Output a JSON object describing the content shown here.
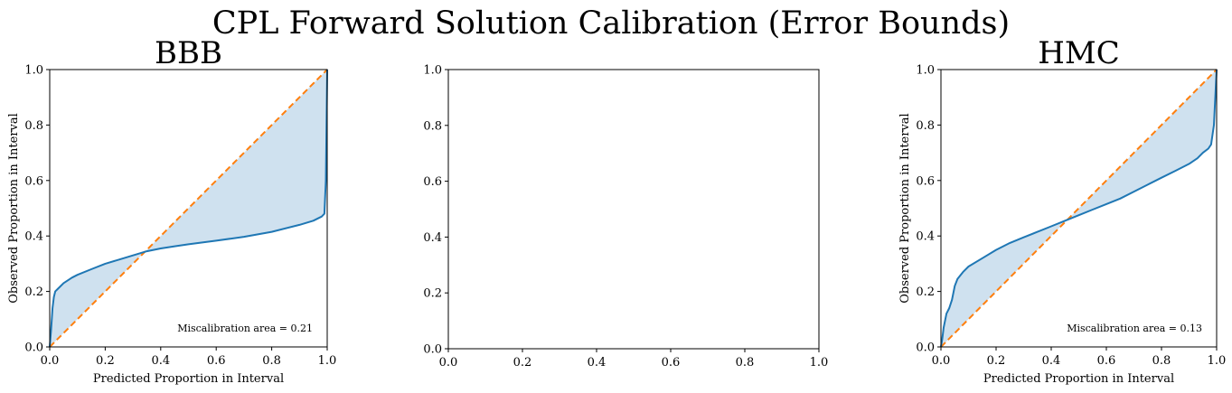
{
  "suptitle": "CPL Forward Solution Calibration (Error Bounds)",
  "colors": {
    "curve": "#1f77b4",
    "ideal": "#ff7f0e",
    "fill": "#cfe1ef",
    "axis": "#000000"
  },
  "chart_data": [
    {
      "type": "line",
      "title": "BBB",
      "xlabel": "Predicted Proportion in Interval",
      "ylabel": "Observed Proportion in Interval",
      "xlim": [
        0,
        1
      ],
      "ylim": [
        0,
        1
      ],
      "xticks": [
        "0.0",
        "0.2",
        "0.4",
        "0.6",
        "0.8",
        "1.0"
      ],
      "yticks": [
        "0.0",
        "0.2",
        "0.4",
        "0.6",
        "0.8",
        "1.0"
      ],
      "grid": false,
      "annotation": "Miscalibration area = 0.21",
      "ideal_line": [
        [
          0,
          0
        ],
        [
          1,
          1
        ]
      ],
      "series": [
        {
          "x": [
            0.0,
            0.005,
            0.01,
            0.015,
            0.02,
            0.03,
            0.05,
            0.08,
            0.1,
            0.15,
            0.2,
            0.25,
            0.3,
            0.35,
            0.4,
            0.45,
            0.5,
            0.6,
            0.7,
            0.8,
            0.9,
            0.95,
            0.98,
            0.99,
            0.995,
            1.0
          ],
          "y": [
            0.0,
            0.06,
            0.14,
            0.18,
            0.2,
            0.21,
            0.23,
            0.25,
            0.26,
            0.28,
            0.3,
            0.315,
            0.33,
            0.345,
            0.355,
            0.363,
            0.37,
            0.383,
            0.397,
            0.415,
            0.44,
            0.455,
            0.47,
            0.48,
            0.6,
            1.0
          ]
        }
      ]
    },
    {
      "type": "line",
      "title": "",
      "xlabel": "",
      "ylabel": "",
      "xlim": [
        0,
        1
      ],
      "ylim": [
        0,
        1
      ],
      "xticks": [
        "0.0",
        "0.2",
        "0.4",
        "0.6",
        "0.8",
        "1.0"
      ],
      "yticks": [
        "0.0",
        "0.2",
        "0.4",
        "0.6",
        "0.8",
        "1.0"
      ],
      "grid": false,
      "annotation": "",
      "series": []
    },
    {
      "type": "line",
      "title": "HMC",
      "xlabel": "Predicted Proportion in Interval",
      "ylabel": "Observed Proportion in Interval",
      "xlim": [
        0,
        1
      ],
      "ylim": [
        0,
        1
      ],
      "xticks": [
        "0.0",
        "0.2",
        "0.4",
        "0.6",
        "0.8",
        "1.0"
      ],
      "yticks": [
        "0.0",
        "0.2",
        "0.4",
        "0.6",
        "0.8",
        "1.0"
      ],
      "grid": false,
      "annotation": "Miscalibration area = 0.13",
      "ideal_line": [
        [
          0,
          0
        ],
        [
          1,
          1
        ]
      ],
      "series": [
        {
          "x": [
            0.0,
            0.005,
            0.01,
            0.02,
            0.03,
            0.04,
            0.05,
            0.06,
            0.08,
            0.1,
            0.15,
            0.2,
            0.25,
            0.3,
            0.35,
            0.4,
            0.45,
            0.5,
            0.55,
            0.6,
            0.65,
            0.7,
            0.75,
            0.8,
            0.85,
            0.9,
            0.93,
            0.95,
            0.97,
            0.98,
            0.99,
            1.0
          ],
          "y": [
            0.0,
            0.03,
            0.07,
            0.12,
            0.14,
            0.17,
            0.22,
            0.245,
            0.27,
            0.29,
            0.32,
            0.35,
            0.375,
            0.395,
            0.415,
            0.435,
            0.455,
            0.475,
            0.495,
            0.515,
            0.535,
            0.56,
            0.585,
            0.61,
            0.635,
            0.66,
            0.68,
            0.7,
            0.715,
            0.73,
            0.8,
            1.0
          ]
        }
      ]
    }
  ]
}
